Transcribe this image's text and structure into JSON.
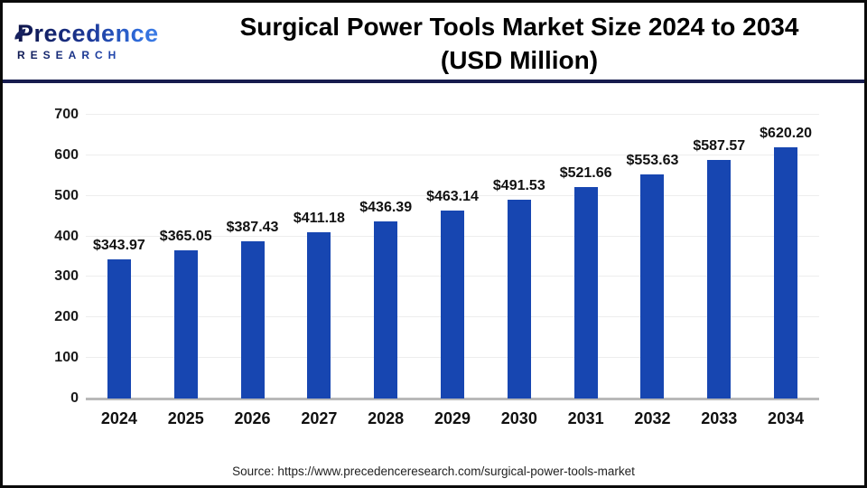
{
  "header": {
    "logo": {
      "brand": "Precedence",
      "sub": "RESEARCH"
    },
    "title_line1": "Surgical Power Tools Market Size 2024 to 2034",
    "title_line2": "(USD Million)"
  },
  "chart_data": {
    "type": "bar",
    "title": "Surgical Power Tools Market Size 2024 to 2034",
    "subtitle": "(USD Million)",
    "categories": [
      "2024",
      "2025",
      "2026",
      "2027",
      "2028",
      "2029",
      "2030",
      "2031",
      "2032",
      "2033",
      "2034"
    ],
    "values": [
      343.97,
      365.05,
      387.43,
      411.18,
      436.39,
      463.14,
      491.53,
      521.66,
      553.63,
      587.57,
      620.2
    ],
    "value_prefix": "$",
    "xlabel": "",
    "ylabel": "",
    "ylim": [
      0,
      700
    ],
    "ytick_step": 100,
    "grid": true,
    "legend_position": "none",
    "bar_color": "#1746b1"
  },
  "footer": {
    "source": "Source: https://www.precedenceresearch.com/surgical-power-tools-market"
  }
}
